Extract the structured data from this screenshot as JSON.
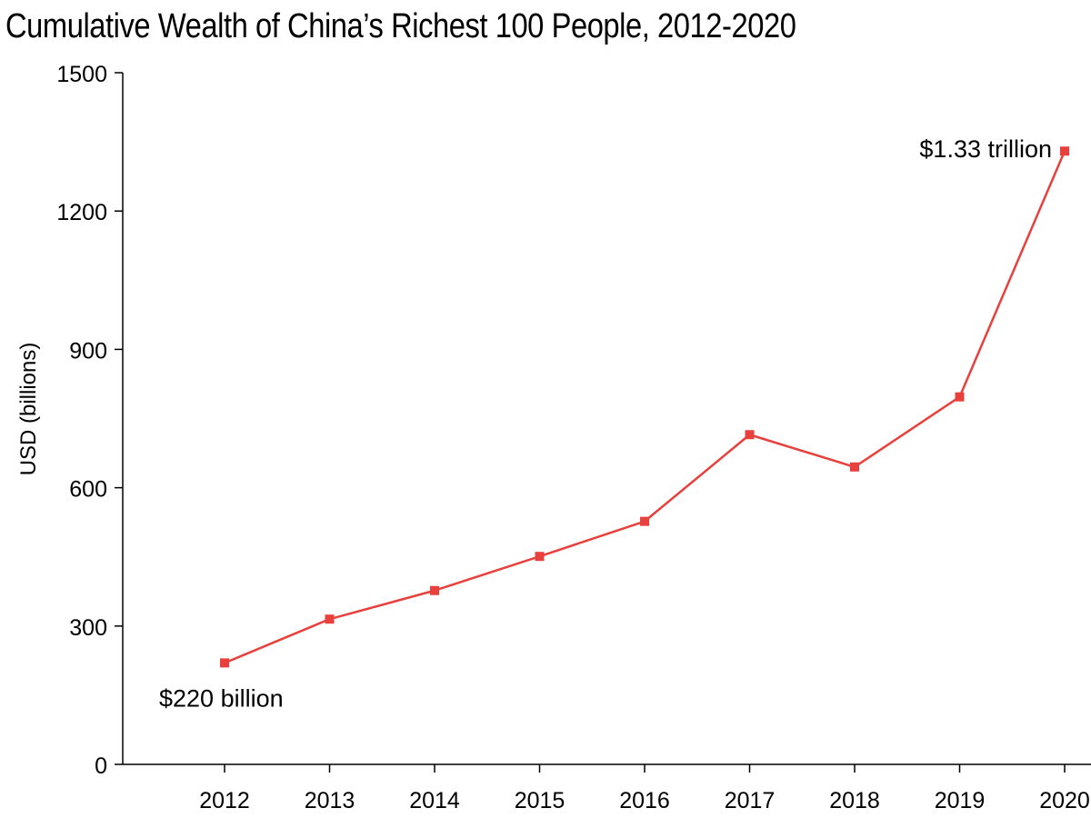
{
  "chart_data": {
    "type": "line",
    "title": "Cumulative Wealth of China’s Richest 100 People, 2012-2020",
    "xlabel": "",
    "ylabel": "USD (billions)",
    "x": [
      2012,
      2013,
      2014,
      2015,
      2016,
      2017,
      2018,
      2019,
      2020
    ],
    "x_tick_labels": [
      "2012",
      "2013",
      "2014",
      "2015",
      "2016",
      "2017",
      "2018",
      "2019",
      "2020"
    ],
    "y_tick_labels": [
      "0",
      "300",
      "600",
      "900",
      "1200",
      "1500"
    ],
    "series": [
      {
        "values": [
          220,
          315,
          377,
          451,
          527,
          715,
          645,
          797,
          1330
        ],
        "color": "#e8403c"
      }
    ],
    "ylim": [
      0,
      1500
    ],
    "grid": false,
    "annotations": [
      {
        "x": 2012,
        "y": 220,
        "text": "$220 billion"
      },
      {
        "x": 2020,
        "y": 1330,
        "text": "$1.33 trillion"
      }
    ]
  }
}
